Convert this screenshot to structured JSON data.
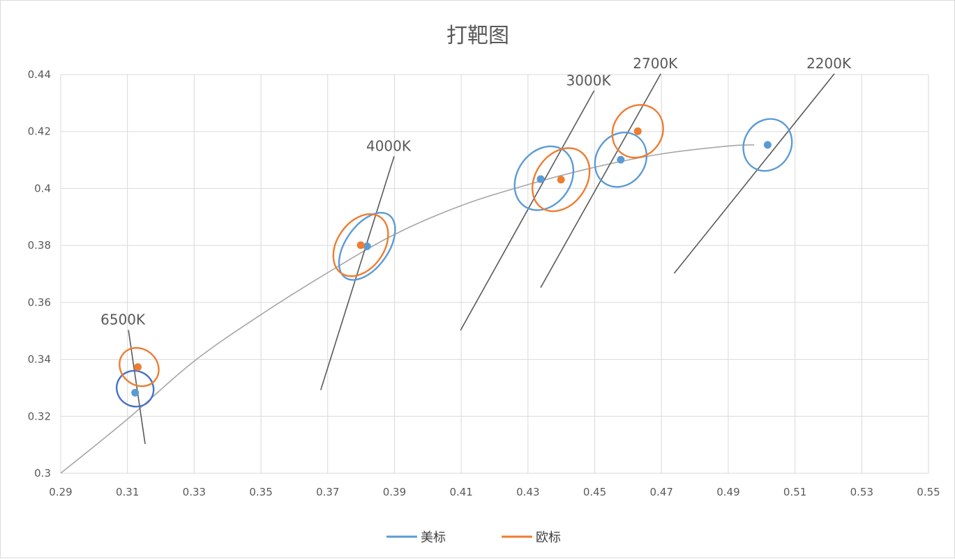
{
  "chart_data": {
    "type": "scatter",
    "title": "打靶图",
    "xlabel": "",
    "ylabel": "",
    "xlim": [
      0.29,
      0.55
    ],
    "ylim": [
      0.3,
      0.44
    ],
    "x_ticks": [
      "0.29",
      "0.31",
      "0.33",
      "0.35",
      "0.37",
      "0.39",
      "0.41",
      "0.43",
      "0.45",
      "0.47",
      "0.49",
      "0.51",
      "0.53",
      "0.55"
    ],
    "y_ticks": [
      "0.3",
      "0.32",
      "0.34",
      "0.36",
      "0.38",
      "0.4",
      "0.42",
      "0.44"
    ],
    "grid": true,
    "legend_position": "bottom",
    "colors": {
      "us": "#5b9bd5",
      "us_6500": "#4472c4",
      "eu": "#ed7d31",
      "curve": "#a6a6a6",
      "isotherm": "#595959",
      "grid": "#d9d9d9"
    },
    "series": [
      {
        "name": "美标",
        "color": "#5b9bd5",
        "points": [
          {
            "x": 0.3123,
            "y": 0.3283
          },
          {
            "x": 0.3818,
            "y": 0.3797
          },
          {
            "x": 0.4338,
            "y": 0.4033
          },
          {
            "x": 0.4578,
            "y": 0.4101
          },
          {
            "x": 0.5018,
            "y": 0.4153
          }
        ]
      },
      {
        "name": "欧标",
        "color": "#ed7d31",
        "points": [
          {
            "x": 0.3131,
            "y": 0.3373
          },
          {
            "x": 0.3799,
            "y": 0.3801
          },
          {
            "x": 0.4399,
            "y": 0.4031
          },
          {
            "x": 0.4629,
            "y": 0.4201
          }
        ]
      }
    ],
    "ellipses": [
      {
        "series": "美标",
        "cct": "6500K",
        "cx": 0.3123,
        "cy": 0.3297,
        "rx": 0.0056,
        "ry": 0.0062,
        "angle_deg": -60
      },
      {
        "series": "欧标",
        "cct": "6500K",
        "cx": 0.3135,
        "cy": 0.3373,
        "rx": 0.0062,
        "ry": 0.0063,
        "angle_deg": -50
      },
      {
        "series": "美标",
        "cct": "4000K",
        "cx": 0.3818,
        "cy": 0.3797,
        "rx": 0.0064,
        "ry": 0.0134,
        "angle_deg": -55
      },
      {
        "series": "欧标",
        "cct": "4000K",
        "cx": 0.3799,
        "cy": 0.3801,
        "rx": 0.007,
        "ry": 0.012,
        "angle_deg": -55
      },
      {
        "series": "美标",
        "cct": "3000K",
        "cx": 0.4348,
        "cy": 0.4036,
        "rx": 0.008,
        "ry": 0.012,
        "angle_deg": -55
      },
      {
        "series": "欧标",
        "cct": "3000K",
        "cx": 0.4399,
        "cy": 0.4031,
        "rx": 0.0076,
        "ry": 0.012,
        "angle_deg": -55
      },
      {
        "series": "美标",
        "cct": "2700K",
        "cx": 0.4578,
        "cy": 0.4101,
        "rx": 0.0073,
        "ry": 0.01,
        "angle_deg": -55
      },
      {
        "series": "欧标",
        "cct": "2700K",
        "cx": 0.4629,
        "cy": 0.4201,
        "rx": 0.0073,
        "ry": 0.0096,
        "angle_deg": -55
      },
      {
        "series": "美标",
        "cct": "2200K",
        "cx": 0.5018,
        "cy": 0.4153,
        "rx": 0.007,
        "ry": 0.0094,
        "angle_deg": -60
      }
    ],
    "isotherms": [
      {
        "label": "6500K",
        "x1": 0.3103,
        "y1": 0.3503,
        "x2": 0.3153,
        "y2": 0.3103
      },
      {
        "label": "4000K",
        "x1": 0.3899,
        "y1": 0.4113,
        "x2": 0.3679,
        "y2": 0.3292
      },
      {
        "label": "3000K",
        "x1": 0.4498,
        "y1": 0.4343,
        "x2": 0.4098,
        "y2": 0.3502
      },
      {
        "label": "2700K",
        "x1": 0.4698,
        "y1": 0.4403,
        "x2": 0.4338,
        "y2": 0.3652
      },
      {
        "label": "2200K",
        "x1": 0.5218,
        "y1": 0.4403,
        "x2": 0.4738,
        "y2": 0.3702
      }
    ],
    "planckian_locus": [
      {
        "x": 0.29,
        "y": 0.3
      },
      {
        "x": 0.3099,
        "y": 0.3189
      },
      {
        "x": 0.3298,
        "y": 0.3392
      },
      {
        "x": 0.3496,
        "y": 0.3554
      },
      {
        "x": 0.3698,
        "y": 0.3703
      },
      {
        "x": 0.3899,
        "y": 0.3838
      },
      {
        "x": 0.4098,
        "y": 0.3939
      },
      {
        "x": 0.4298,
        "y": 0.4013
      },
      {
        "x": 0.4498,
        "y": 0.4074
      },
      {
        "x": 0.4698,
        "y": 0.4121
      },
      {
        "x": 0.4898,
        "y": 0.4149
      },
      {
        "x": 0.4978,
        "y": 0.4153
      }
    ]
  }
}
